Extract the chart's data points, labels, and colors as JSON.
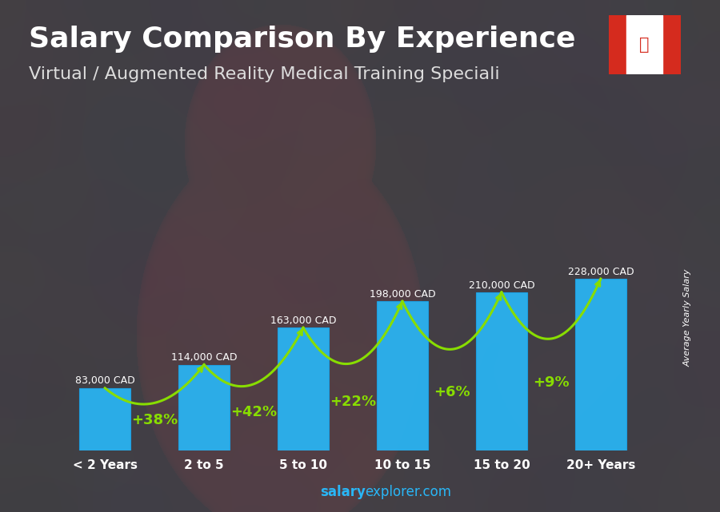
{
  "title": "Salary Comparison By Experience",
  "subtitle": "Virtual / Augmented Reality Medical Training Speciali",
  "categories": [
    "< 2 Years",
    "2 to 5",
    "5 to 10",
    "10 to 15",
    "15 to 20",
    "20+ Years"
  ],
  "values": [
    83000,
    114000,
    163000,
    198000,
    210000,
    228000
  ],
  "labels": [
    "83,000 CAD",
    "114,000 CAD",
    "163,000 CAD",
    "198,000 CAD",
    "210,000 CAD",
    "228,000 CAD"
  ],
  "pct_changes": [
    "+38%",
    "+42%",
    "+22%",
    "+6%",
    "+9%"
  ],
  "bar_color": "#29b6f6",
  "bar_edge_color": "#1aa3e8",
  "arrow_color": "#88dd00",
  "label_color": "#ffffff",
  "title_color": "#ffffff",
  "subtitle_color": "#dddddd",
  "ylabel": "Average Yearly Salary",
  "footer_salary": "salary",
  "footer_rest": "explorer.com",
  "footer_color": "#29b6f6",
  "title_fontsize": 26,
  "subtitle_fontsize": 16,
  "bar_width": 0.52,
  "bg_overlay_alpha": 0.38
}
